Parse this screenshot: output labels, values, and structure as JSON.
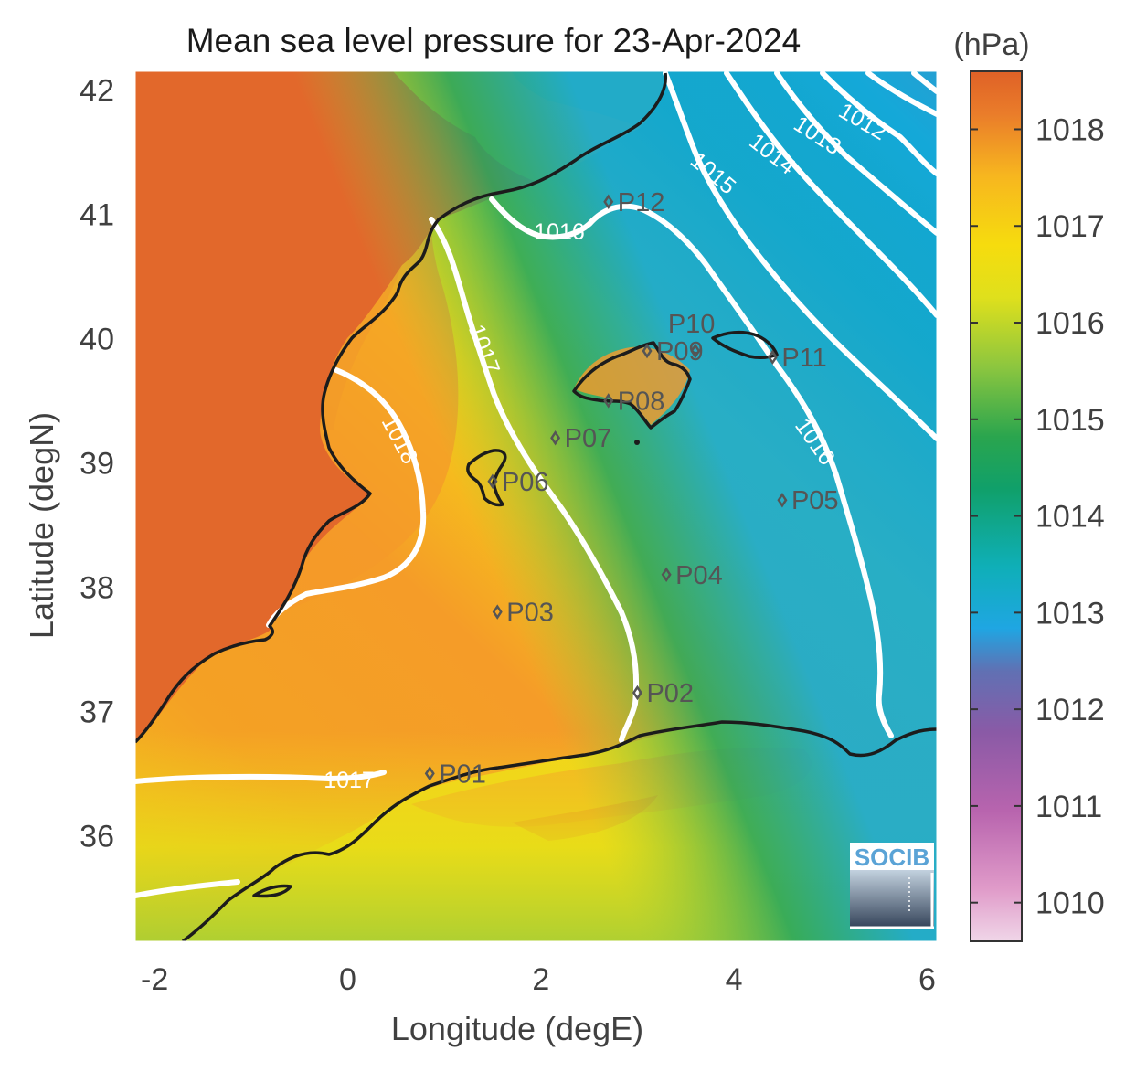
{
  "title": "Mean sea level pressure for 23-Apr-2024",
  "x_axis": {
    "label": "Longitude (degE)",
    "range": [
      -2.2,
      6.1
    ],
    "ticks": [
      {
        "v": -2,
        "t": "-2"
      },
      {
        "v": 0,
        "t": "0"
      },
      {
        "v": 2,
        "t": "2"
      },
      {
        "v": 4,
        "t": "4"
      },
      {
        "v": 6,
        "t": "6"
      }
    ]
  },
  "y_axis": {
    "label": "Latitude (degN)",
    "range": [
      35.15,
      42.15
    ],
    "ticks": [
      {
        "v": 36,
        "t": "36"
      },
      {
        "v": 37,
        "t": "37"
      },
      {
        "v": 38,
        "t": "38"
      },
      {
        "v": 39,
        "t": "39"
      },
      {
        "v": 40,
        "t": "40"
      },
      {
        "v": 41,
        "t": "41"
      },
      {
        "v": 42,
        "t": "42"
      }
    ]
  },
  "colorbar": {
    "unit": "(hPa)",
    "range": [
      1009.6,
      1018.6
    ],
    "ticks": [
      {
        "v": 1010,
        "t": "1010"
      },
      {
        "v": 1011,
        "t": "1011"
      },
      {
        "v": 1012,
        "t": "1012"
      },
      {
        "v": 1013,
        "t": "1013"
      },
      {
        "v": 1014,
        "t": "1014"
      },
      {
        "v": 1015,
        "t": "1015"
      },
      {
        "v": 1016,
        "t": "1016"
      },
      {
        "v": 1017,
        "t": "1017"
      },
      {
        "v": 1018,
        "t": "1018"
      }
    ],
    "colors": [
      "#e7bcd8",
      "#c65da9",
      "#7a58a6",
      "#1aa7e0",
      "#0fb0a0",
      "#109a5a",
      "#8cc63f",
      "#f2e20a",
      "#f7a22a",
      "#e0652a"
    ]
  },
  "contour_labels": [
    {
      "t": "1018"
    },
    {
      "t": "1017"
    },
    {
      "t": "1017"
    },
    {
      "t": "1016"
    },
    {
      "t": "1016"
    },
    {
      "t": "1015"
    },
    {
      "t": "1014"
    },
    {
      "t": "1013"
    },
    {
      "t": "1012"
    }
  ],
  "points": [
    {
      "label": "P01",
      "lon": 0.85,
      "lat": 36.5
    },
    {
      "label": "P02",
      "lon": 3.0,
      "lat": 37.15
    },
    {
      "label": "P03",
      "lon": 1.55,
      "lat": 37.8
    },
    {
      "label": "P04",
      "lon": 3.3,
      "lat": 38.1
    },
    {
      "label": "P05",
      "lon": 4.5,
      "lat": 38.7
    },
    {
      "label": "P06",
      "lon": 1.5,
      "lat": 38.85
    },
    {
      "label": "P07",
      "lon": 2.15,
      "lat": 39.2
    },
    {
      "label": "P08",
      "lon": 2.7,
      "lat": 39.5
    },
    {
      "label": "P09",
      "lon": 3.1,
      "lat": 39.9
    },
    {
      "label": "P10",
      "lon": 3.6,
      "lat": 39.9
    },
    {
      "label": "P11",
      "lon": 4.4,
      "lat": 39.85
    },
    {
      "label": "P12",
      "lon": 2.7,
      "lat": 41.1
    }
  ],
  "logo": {
    "text": "SOCIB"
  },
  "colors": {
    "land_high": "#e0652a",
    "sea_mid": "#f4c81a",
    "contour": "#ffffff",
    "coast": "#1c1c1c"
  }
}
